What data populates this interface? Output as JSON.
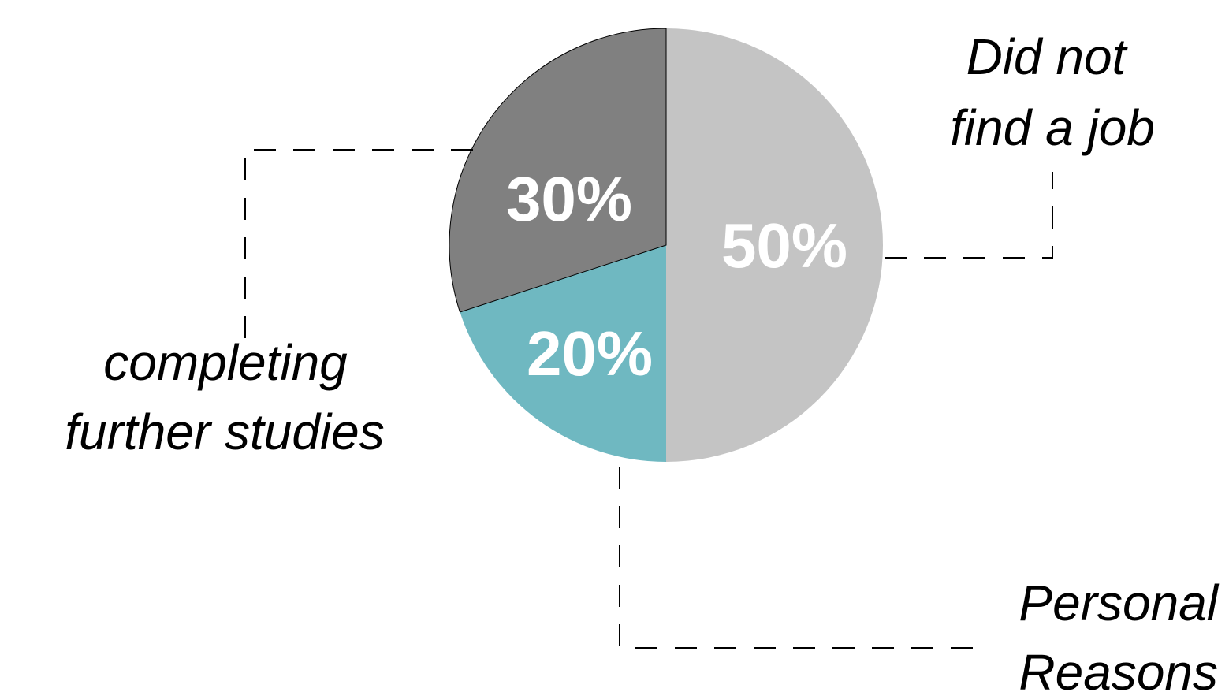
{
  "chart_data": {
    "type": "pie",
    "slices": [
      {
        "label_lines": [
          "Did not",
          "find a job"
        ],
        "value": 50,
        "value_label": "50%",
        "color": "#c4c4c4"
      },
      {
        "label_lines": [
          "Personal",
          "Reasons"
        ],
        "value": 20,
        "value_label": "20%",
        "color": "#6fb8c1"
      },
      {
        "label_lines": [
          "completing",
          "further studies"
        ],
        "value": 30,
        "value_label": "30%",
        "color": "#808080"
      }
    ],
    "start_angle": "12 o'clock",
    "direction": "clockwise",
    "label_style": "italic callouts with dashed leader lines",
    "value_label_color": "#ffffff"
  }
}
